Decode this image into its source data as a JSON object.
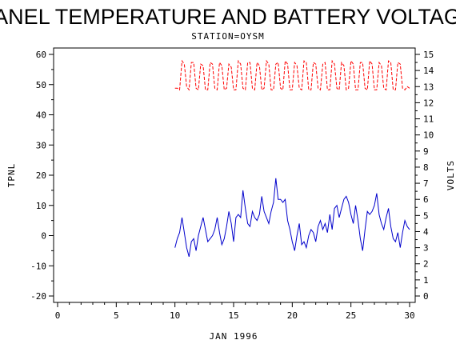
{
  "chart_data": {
    "type": "line",
    "title": "PANEL TEMPERATURE AND BATTERY VOLTAGE",
    "subtitle": "STATION=OYSM",
    "xlabel": "JAN 1996",
    "ylabel_left": "TPNL",
    "ylabel_right": "VOLTS",
    "xlim": [
      0,
      30
    ],
    "ylim_left": [
      -20,
      60
    ],
    "ylim_right": [
      0,
      15
    ],
    "x_ticks": [
      0,
      5,
      10,
      15,
      20,
      25,
      30
    ],
    "y_left_ticks": [
      -20,
      -10,
      0,
      10,
      20,
      30,
      40,
      50,
      60
    ],
    "y_right_ticks": [
      0,
      1,
      2,
      3,
      4,
      5,
      6,
      7,
      8,
      9,
      10,
      11,
      12,
      13,
      14,
      15
    ],
    "grid": false,
    "series": [
      {
        "axis": "left",
        "color": "#0000cc",
        "style": "solid",
        "x": [
          10.0,
          10.2,
          10.4,
          10.6,
          10.8,
          11.0,
          11.2,
          11.4,
          11.6,
          11.8,
          12.0,
          12.2,
          12.4,
          12.6,
          12.8,
          13.0,
          13.2,
          13.4,
          13.6,
          13.8,
          14.0,
          14.2,
          14.4,
          14.6,
          14.8,
          15.0,
          15.2,
          15.4,
          15.6,
          15.8,
          16.0,
          16.2,
          16.4,
          16.6,
          16.8,
          17.0,
          17.2,
          17.4,
          17.6,
          17.8,
          18.0,
          18.2,
          18.4,
          18.6,
          18.8,
          19.0,
          19.2,
          19.4,
          19.6,
          19.8,
          20.0,
          20.2,
          20.4,
          20.6,
          20.8,
          21.0,
          21.2,
          21.4,
          21.6,
          21.8,
          22.0,
          22.2,
          22.4,
          22.6,
          22.8,
          23.0,
          23.2,
          23.4,
          23.6,
          23.8,
          24.0,
          24.2,
          24.4,
          24.6,
          24.8,
          25.0,
          25.2,
          25.4,
          25.6,
          25.8,
          26.0,
          26.2,
          26.4,
          26.6,
          26.8,
          27.0,
          27.2,
          27.4,
          27.6,
          27.8,
          28.0,
          28.2,
          28.4,
          28.6,
          28.8,
          29.0,
          29.2,
          29.4,
          29.6,
          29.8,
          30.0
        ],
        "values": [
          -4,
          -1,
          1,
          6,
          1,
          -4,
          -7,
          -2,
          -1,
          -5,
          0,
          3,
          6,
          2,
          -2,
          -1,
          0,
          2,
          6,
          1,
          -3,
          -1,
          3,
          8,
          4,
          -2,
          6,
          7,
          6,
          15,
          9,
          4,
          3,
          8,
          6,
          5,
          7,
          13,
          8,
          6,
          4,
          8,
          11,
          19,
          12,
          12,
          11,
          12,
          5,
          2,
          -2,
          -5,
          0,
          4,
          -3,
          -2,
          -4,
          0,
          2,
          1,
          -2,
          3,
          5,
          2,
          4,
          1,
          7,
          2,
          9,
          10,
          6,
          9,
          12,
          13,
          11,
          7,
          4,
          10,
          5,
          -1,
          -5,
          2,
          8,
          7,
          8,
          10,
          14,
          7,
          4,
          2,
          6,
          9,
          3,
          -1,
          -2,
          1,
          -4,
          1,
          5,
          3,
          2
        ]
      },
      {
        "axis": "right",
        "color": "#ff0000",
        "style": "dashed",
        "x": [
          10.0,
          10.2,
          10.4,
          10.6,
          10.8,
          11.0,
          11.2,
          11.4,
          11.6,
          11.8,
          12.0,
          12.2,
          12.4,
          12.6,
          12.8,
          13.0,
          13.2,
          13.4,
          13.6,
          13.8,
          14.0,
          14.2,
          14.4,
          14.6,
          14.8,
          15.0,
          15.2,
          15.4,
          15.6,
          15.8,
          16.0,
          16.2,
          16.4,
          16.6,
          16.8,
          17.0,
          17.2,
          17.4,
          17.6,
          17.8,
          18.0,
          18.2,
          18.4,
          18.6,
          18.8,
          19.0,
          19.2,
          19.4,
          19.6,
          19.8,
          20.0,
          20.2,
          20.4,
          20.6,
          20.8,
          21.0,
          21.2,
          21.4,
          21.6,
          21.8,
          22.0,
          22.2,
          22.4,
          22.6,
          22.8,
          23.0,
          23.2,
          23.4,
          23.6,
          23.8,
          24.0,
          24.2,
          24.4,
          24.6,
          24.8,
          25.0,
          25.2,
          25.4,
          25.6,
          25.8,
          26.0,
          26.2,
          26.4,
          26.6,
          26.8,
          27.0,
          27.2,
          27.4,
          27.6,
          27.8,
          28.0,
          28.2,
          28.4,
          28.6,
          28.8,
          29.0,
          29.2,
          29.4,
          29.6,
          29.8,
          30.0
        ],
        "values": [
          12.9,
          12.9,
          12.8,
          14.6,
          14.4,
          13.0,
          12.8,
          14.5,
          14.5,
          12.9,
          12.8,
          14.4,
          14.3,
          12.8,
          12.8,
          14.5,
          14.4,
          12.9,
          12.8,
          14.5,
          14.3,
          12.8,
          12.9,
          14.4,
          14.2,
          12.8,
          12.8,
          14.6,
          14.4,
          12.9,
          12.8,
          14.5,
          14.5,
          12.9,
          12.8,
          14.5,
          14.3,
          12.8,
          12.9,
          14.6,
          14.4,
          12.8,
          12.8,
          14.4,
          14.5,
          12.9,
          12.8,
          14.6,
          14.4,
          12.8,
          12.8,
          14.5,
          14.3,
          12.9,
          12.8,
          14.6,
          14.5,
          12.8,
          12.8,
          14.5,
          14.4,
          12.9,
          12.8,
          14.4,
          14.5,
          12.8,
          12.8,
          14.6,
          14.4,
          12.9,
          12.8,
          14.5,
          14.3,
          12.8,
          12.9,
          14.6,
          14.4,
          12.8,
          12.8,
          14.5,
          14.5,
          12.9,
          12.8,
          14.6,
          14.4,
          12.8,
          12.8,
          14.5,
          14.3,
          12.9,
          12.8,
          14.6,
          14.5,
          12.8,
          12.8,
          14.5,
          14.4,
          12.9,
          12.8,
          13.0,
          12.9
        ]
      }
    ]
  }
}
